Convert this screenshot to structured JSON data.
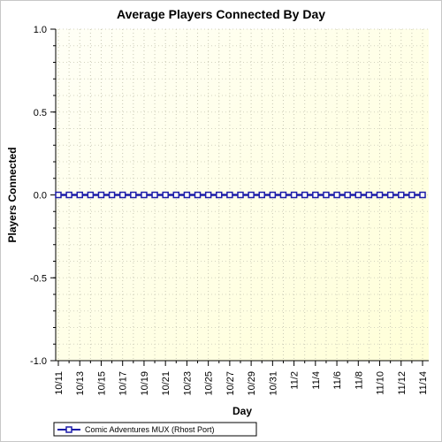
{
  "chart_data": {
    "type": "line",
    "title": "Average Players Connected By Day",
    "xlabel": "Day",
    "ylabel": "Players Connected",
    "ylim": [
      -1.0,
      1.0
    ],
    "y_ticks": [
      "1.0",
      "0.5",
      "0.0",
      "-0.5",
      "-1.0"
    ],
    "categories": [
      "10/11",
      "10/12",
      "10/13",
      "10/14",
      "10/15",
      "10/16",
      "10/17",
      "10/18",
      "10/19",
      "10/20",
      "10/21",
      "10/22",
      "10/23",
      "10/24",
      "10/25",
      "10/26",
      "10/27",
      "10/28",
      "10/29",
      "10/30",
      "10/31",
      "11/1",
      "11/2",
      "11/3",
      "11/4",
      "11/5",
      "11/6",
      "11/7",
      "11/8",
      "11/9",
      "11/10",
      "11/11",
      "11/12",
      "11/13",
      "11/14"
    ],
    "x_tick_labels": [
      "10/11",
      "10/13",
      "10/15",
      "10/17",
      "10/19",
      "10/21",
      "10/23",
      "10/25",
      "10/27",
      "10/29",
      "10/31",
      "11/2",
      "11/4",
      "11/6",
      "11/8",
      "11/10",
      "11/12",
      "11/14"
    ],
    "series": [
      {
        "name": "Comic Adventures MUX (Rhost Port)",
        "color": "#1c1ca8",
        "values": [
          0,
          0,
          0,
          0,
          0,
          0,
          0,
          0,
          0,
          0,
          0,
          0,
          0,
          0,
          0,
          0,
          0,
          0,
          0,
          0,
          0,
          0,
          0,
          0,
          0,
          0,
          0,
          0,
          0,
          0,
          0,
          0,
          0,
          0,
          0
        ]
      }
    ],
    "grid": true,
    "legend": "bottom-left",
    "background": "#fffff0"
  }
}
